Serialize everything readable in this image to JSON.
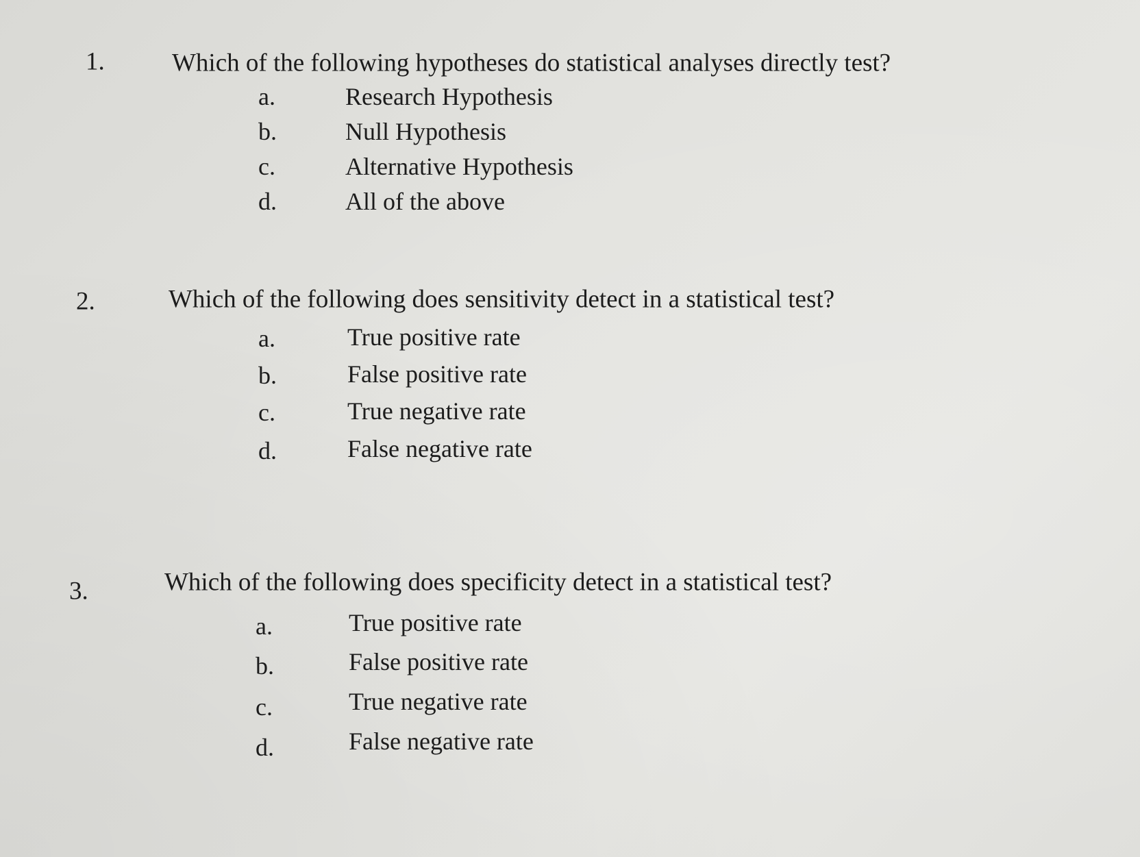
{
  "questions": [
    {
      "number": "1.",
      "text": "Which of the following hypotheses do statistical analyses directly test?",
      "options": [
        {
          "letter": "a.",
          "text": "Research Hypothesis"
        },
        {
          "letter": "b.",
          "text": "Null Hypothesis"
        },
        {
          "letter": "c.",
          "text": "Alternative Hypothesis"
        },
        {
          "letter": "d.",
          "text": "All of the above"
        }
      ]
    },
    {
      "number": "2.",
      "text": "Which of the following does sensitivity detect in a statistical test?",
      "options": [
        {
          "letter": "a.",
          "text": "True positive rate"
        },
        {
          "letter": "b.",
          "text": "False positive rate"
        },
        {
          "letter": "c.",
          "text": "True negative rate"
        },
        {
          "letter": "d.",
          "text": "False negative rate"
        }
      ]
    },
    {
      "number": "3.",
      "text": "Which of the following does specificity detect in a statistical test?",
      "options": [
        {
          "letter": "a.",
          "text": "True positive rate"
        },
        {
          "letter": "b.",
          "text": "False positive rate"
        },
        {
          "letter": "c.",
          "text": "True negative rate"
        },
        {
          "letter": "d.",
          "text": "False negative rate"
        }
      ]
    }
  ]
}
